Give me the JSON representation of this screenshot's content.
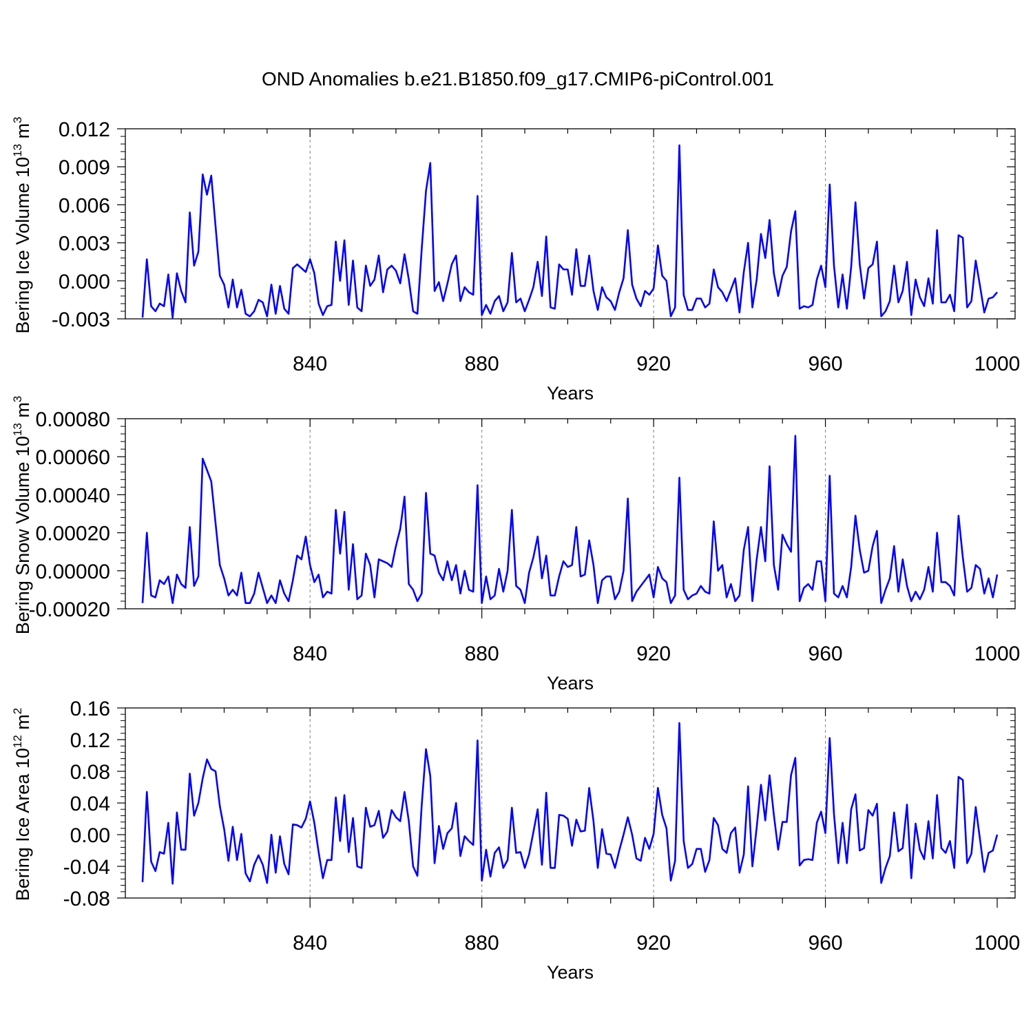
{
  "title": "OND Anomalies b.e21.B1850.f09_g17.CMIP6-piControl.001",
  "colors": {
    "line": "#0000ff",
    "axis": "#000000",
    "grid": "#808080"
  },
  "chart_data": [
    {
      "type": "line",
      "title": "OND Anomalies b.e21.B1850.f09_g17.CMIP6-piControl.001",
      "xlabel": "Years",
      "ylabel": "Bering Ice Volume 10",
      "ylabel_exp": "13",
      "ylabel_unit": " m",
      "ylabel_unit_exp": "3",
      "xlim": [
        801,
        1000
      ],
      "ylim": [
        -0.003,
        0.012
      ],
      "xticks": [
        840,
        880,
        920,
        960,
        1000
      ],
      "yticks": [
        "-0.003",
        "0.000",
        "0.003",
        "0.006",
        "0.009",
        "0.012"
      ],
      "grid": "dashed vertical at x ticks",
      "x_start": 801,
      "series": [
        {
          "values": [
            -0.0029,
            0.0017,
            -0.002,
            -0.0024,
            -0.0018,
            -0.002,
            0.0005,
            -0.0029,
            0.0006,
            -0.0008,
            -0.0017,
            0.0054,
            0.0012,
            0.0023,
            0.0084,
            0.0068,
            0.0083,
            0.0043,
            0.0004,
            -0.0003,
            -0.0021,
            0.0001,
            -0.0021,
            -0.0007,
            -0.0026,
            -0.0028,
            -0.0024,
            -0.0015,
            -0.0017,
            -0.0028,
            -0.0003,
            -0.0026,
            -0.0004,
            -0.0022,
            -0.0026,
            0.001,
            0.0013,
            0.001,
            0.0007,
            0.0017,
            0.0006,
            -0.0018,
            -0.0027,
            -0.002,
            -0.0019,
            0.0031,
            0.0,
            0.0032,
            -0.0019,
            0.0016,
            -0.0021,
            -0.0024,
            0.0012,
            -0.0004,
            0.0001,
            0.002,
            -0.0009,
            0.0009,
            0.0012,
            0.0008,
            -0.0002,
            0.0021,
            0.0001,
            -0.0024,
            -0.0026,
            0.0025,
            0.0071,
            0.0093,
            -0.0008,
            -0.0001,
            -0.0016,
            -0.0002,
            0.0013,
            0.002,
            -0.0016,
            -0.0005,
            -0.0009,
            -0.0011,
            0.0067,
            -0.0027,
            -0.0019,
            -0.0026,
            -0.0016,
            -0.0012,
            -0.0024,
            -0.0017,
            0.0022,
            -0.0017,
            -0.0014,
            -0.0024,
            -0.0015,
            -0.0005,
            0.0015,
            -0.0012,
            0.0035,
            -0.0021,
            -0.0022,
            0.0013,
            0.0009,
            0.0009,
            -0.0011,
            0.0025,
            -0.0004,
            -0.0004,
            0.002,
            -0.0008,
            -0.0023,
            -0.0005,
            -0.0013,
            -0.0016,
            -0.0023,
            -0.0009,
            0.0002,
            0.004,
            -0.0003,
            -0.0014,
            -0.002,
            -0.0008,
            -0.0011,
            -0.0006,
            0.0028,
            0.0004,
            0.0,
            -0.0028,
            -0.0021,
            0.0107,
            -0.0011,
            -0.0023,
            -0.0023,
            -0.0014,
            -0.0014,
            -0.0021,
            -0.0018,
            0.0009,
            -0.0005,
            -0.0009,
            -0.0016,
            -0.0007,
            0.0002,
            -0.0025,
            0.0007,
            0.003,
            -0.0021,
            0.0001,
            0.0037,
            0.0018,
            0.0048,
            0.0006,
            -0.0012,
            0.0004,
            0.0011,
            0.0039,
            0.0055,
            -0.0022,
            -0.002,
            -0.0021,
            -0.0019,
            0.0001,
            0.0012,
            -0.0005,
            0.0076,
            0.0012,
            -0.0021,
            0.0005,
            -0.0022,
            0.0011,
            0.0062,
            0.0013,
            -0.0014,
            0.001,
            0.0013,
            0.0031,
            -0.0028,
            -0.0024,
            -0.0016,
            0.0012,
            -0.0017,
            -0.0008,
            0.0015,
            -0.0027,
            0.0001,
            -0.0013,
            -0.002,
            0.0002,
            -0.0018,
            0.004,
            -0.0017,
            -0.0017,
            -0.0011,
            -0.0024,
            0.0036,
            0.0034,
            -0.0021,
            -0.0016,
            0.0016,
            -0.0004,
            -0.0025,
            -0.0014,
            -0.0013,
            -0.0009
          ]
        }
      ]
    },
    {
      "type": "line",
      "xlabel": "Years",
      "ylabel": "Bering Snow Volume 10",
      "ylabel_exp": "13",
      "ylabel_unit": " m",
      "ylabel_unit_exp": "3",
      "xlim": [
        801,
        1000
      ],
      "ylim": [
        -0.0002,
        0.0008
      ],
      "xticks": [
        840,
        880,
        920,
        960,
        1000
      ],
      "yticks": [
        "-0.00020",
        "0.00000",
        "0.00020",
        "0.00040",
        "0.00060",
        "0.00080"
      ],
      "grid": "dashed vertical at x ticks",
      "x_start": 801,
      "series": [
        {
          "values": [
            -0.00017,
            0.0002,
            -0.00013,
            -0.00014,
            -5e-05,
            -7e-05,
            -3e-05,
            -0.00017,
            -2e-05,
            -7e-05,
            -9e-05,
            0.00023,
            -8e-05,
            -3e-05,
            0.00059,
            0.00053,
            0.00047,
            0.00025,
            3e-05,
            -4e-05,
            -0.00013,
            -0.0001,
            -0.00013,
            -1e-05,
            -0.00017,
            -0.00017,
            -0.00012,
            -1e-05,
            -9e-05,
            -0.00017,
            -0.00013,
            -0.00017,
            -5e-05,
            -0.00012,
            -0.00016,
            -5e-05,
            8e-05,
            6e-05,
            0.00018,
            3e-05,
            -6e-05,
            -2e-05,
            -0.00014,
            -0.00011,
            -0.00012,
            0.00032,
            9e-05,
            0.00031,
            -0.0001,
            0.00014,
            -0.00015,
            -0.00013,
            9e-05,
            3e-05,
            -0.00014,
            6e-05,
            5e-05,
            4e-05,
            2e-05,
            0.00013,
            0.00022,
            0.00039,
            -7e-05,
            -0.0001,
            -0.00016,
            -0.00012,
            0.00041,
            9e-05,
            8e-05,
            -1e-05,
            -5e-05,
            5e-05,
            -5e-05,
            3e-05,
            -0.00012,
            0.0,
            -0.0001,
            -0.00011,
            0.00045,
            -0.00017,
            -3e-05,
            -0.00015,
            -0.00013,
            1e-05,
            -0.00011,
            0.0,
            0.00032,
            -8e-05,
            -0.0001,
            -0.00017,
            -1e-05,
            7e-05,
            0.00018,
            -4e-05,
            8e-05,
            -0.00013,
            -0.00013,
            -3e-05,
            5e-05,
            2e-05,
            3e-05,
            0.00023,
            -3e-05,
            -2e-05,
            0.00016,
            3e-05,
            -0.00017,
            -5e-05,
            -3e-05,
            -3e-05,
            -0.00015,
            -0.00011,
            0.0,
            0.00038,
            -0.00016,
            -0.00011,
            -8e-05,
            -5e-05,
            -2e-05,
            -0.00014,
            2e-05,
            -4e-05,
            -6e-05,
            -0.00017,
            -0.00013,
            0.00049,
            -0.0001,
            -0.00015,
            -0.00013,
            -0.00012,
            -8e-05,
            -0.00011,
            -0.00012,
            0.00026,
            0.0,
            3e-05,
            -0.00014,
            -7e-05,
            -0.00016,
            -0.00013,
            0.00011,
            0.00023,
            -0.00016,
            6e-05,
            0.00023,
            5e-05,
            0.00055,
            3e-05,
            -0.0001,
            0.00019,
            0.00014,
            0.0001,
            0.00071,
            -0.00016,
            -9e-05,
            -7e-05,
            -0.0001,
            5e-05,
            5e-05,
            -0.00016,
            0.0005,
            -0.00012,
            -0.00014,
            -8e-05,
            -0.00014,
            2e-05,
            0.00029,
            0.00011,
            -1e-05,
            0.0,
            0.00013,
            0.00021,
            -0.00017,
            -0.0001,
            -4e-05,
            0.00013,
            -0.00011,
            6e-05,
            -8e-05,
            -0.00016,
            -0.00011,
            -0.00015,
            -0.0001,
            2e-05,
            -0.00011,
            0.0002,
            -6e-05,
            -6e-05,
            -8e-05,
            -0.00013,
            0.00029,
            7e-05,
            -0.00011,
            -9e-05,
            3e-05,
            1e-05,
            -0.00012,
            -4e-05,
            -0.00014,
            -2e-05
          ]
        }
      ]
    },
    {
      "type": "line",
      "xlabel": "Years",
      "ylabel": "Bering Ice Area 10",
      "ylabel_exp": "12",
      "ylabel_unit": " m",
      "ylabel_unit_exp": "2",
      "xlim": [
        801,
        1000
      ],
      "ylim": [
        -0.08,
        0.16
      ],
      "xticks": [
        840,
        880,
        920,
        960,
        1000
      ],
      "yticks": [
        "-0.08",
        "-0.04",
        "0.00",
        "0.04",
        "0.08",
        "0.12",
        "0.16"
      ],
      "grid": "dashed vertical at x ticks",
      "x_start": 801,
      "series": [
        {
          "values": [
            -0.06,
            0.054,
            -0.034,
            -0.046,
            -0.022,
            -0.024,
            0.015,
            -0.062,
            0.028,
            -0.019,
            -0.019,
            0.077,
            0.024,
            0.04,
            0.071,
            0.095,
            0.083,
            0.08,
            0.036,
            0.007,
            -0.033,
            0.01,
            -0.032,
            0.001,
            -0.049,
            -0.059,
            -0.038,
            -0.026,
            -0.038,
            -0.061,
            0.0,
            -0.048,
            -0.002,
            -0.037,
            -0.05,
            0.013,
            0.012,
            0.009,
            0.02,
            0.042,
            0.015,
            -0.022,
            -0.055,
            -0.032,
            -0.032,
            0.047,
            -0.008,
            0.05,
            -0.022,
            0.021,
            -0.04,
            -0.042,
            0.034,
            0.01,
            0.012,
            0.03,
            -0.004,
            0.004,
            0.031,
            0.022,
            0.017,
            0.054,
            0.017,
            -0.04,
            -0.052,
            0.037,
            0.108,
            0.074,
            -0.036,
            0.011,
            -0.018,
            0.002,
            0.008,
            0.04,
            -0.027,
            -0.002,
            -0.008,
            -0.013,
            0.119,
            -0.058,
            -0.019,
            -0.053,
            -0.023,
            -0.016,
            -0.042,
            -0.032,
            0.034,
            -0.023,
            -0.022,
            -0.042,
            -0.025,
            0.003,
            0.032,
            -0.038,
            0.053,
            -0.042,
            -0.042,
            0.025,
            0.024,
            0.02,
            -0.014,
            0.019,
            0.004,
            0.005,
            0.059,
            0.017,
            -0.042,
            0.007,
            -0.024,
            -0.025,
            -0.042,
            -0.02,
            0.0,
            0.022,
            0.0,
            -0.03,
            -0.033,
            -0.004,
            -0.018,
            0.001,
            0.059,
            0.025,
            0.008,
            -0.058,
            -0.033,
            0.141,
            -0.008,
            -0.042,
            -0.037,
            -0.018,
            -0.018,
            -0.047,
            -0.032,
            0.021,
            0.012,
            -0.018,
            -0.023,
            0.002,
            0.009,
            -0.048,
            -0.025,
            0.061,
            -0.04,
            0.009,
            0.063,
            0.018,
            0.075,
            0.025,
            -0.019,
            0.016,
            0.016,
            0.075,
            0.097,
            -0.039,
            -0.032,
            -0.031,
            -0.032,
            0.015,
            0.029,
            0.002,
            0.122,
            0.026,
            -0.036,
            0.015,
            -0.036,
            0.032,
            0.051,
            -0.02,
            -0.017,
            0.031,
            0.024,
            0.039,
            -0.061,
            -0.042,
            -0.027,
            0.028,
            -0.021,
            -0.017,
            0.038,
            -0.055,
            0.014,
            -0.019,
            -0.031,
            0.017,
            -0.03,
            0.05,
            -0.017,
            -0.023,
            -0.008,
            -0.042,
            0.073,
            0.069,
            -0.036,
            -0.024,
            0.035,
            -0.006,
            -0.047,
            -0.023,
            -0.02,
            0.0
          ]
        }
      ]
    }
  ]
}
